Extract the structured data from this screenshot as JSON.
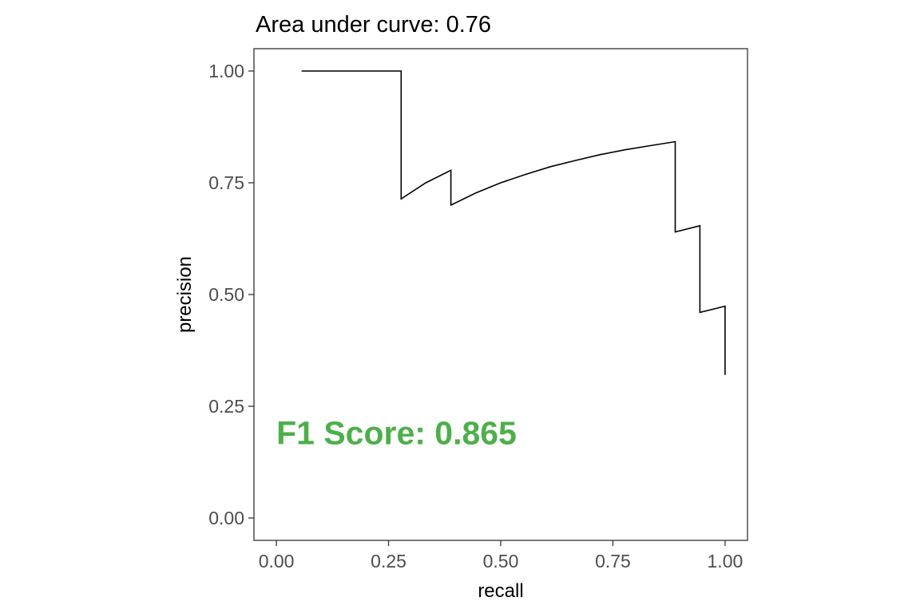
{
  "chart_data": {
    "type": "line",
    "title": "Area under curve: 0.76",
    "xlabel": "recall",
    "ylabel": "precision",
    "xlim": [
      -0.05,
      1.05
    ],
    "ylim": [
      -0.05,
      1.05
    ],
    "xticks": [
      0.0,
      0.25,
      0.5,
      0.75,
      1.0
    ],
    "xtick_labels": [
      "0.00",
      "0.25",
      "0.50",
      "0.75",
      "1.00"
    ],
    "yticks": [
      0.0,
      0.25,
      0.5,
      0.75,
      1.0
    ],
    "ytick_labels": [
      "0.00",
      "0.25",
      "0.50",
      "0.75",
      "1.00"
    ],
    "grid": false,
    "line_color": "#000000",
    "series": [
      {
        "x": [
          0.056,
          0.111,
          0.167,
          0.222,
          0.278,
          0.278,
          0.333,
          0.389,
          0.389,
          0.444,
          0.5,
          0.556,
          0.611,
          0.667,
          0.722,
          0.778,
          0.833,
          0.889,
          0.889,
          0.944,
          0.944,
          1.0,
          1.0
        ],
        "y": [
          1.0,
          1.0,
          1.0,
          1.0,
          1.0,
          0.714,
          0.75,
          0.778,
          0.7,
          0.727,
          0.75,
          0.769,
          0.786,
          0.8,
          0.813,
          0.824,
          0.833,
          0.842,
          0.64,
          0.654,
          0.46,
          0.474,
          0.32
        ]
      }
    ],
    "annotations": [
      {
        "text": "F1 Score: 0.865",
        "x": 0.0,
        "y": 0.19,
        "color": "#4daf4a"
      }
    ]
  }
}
